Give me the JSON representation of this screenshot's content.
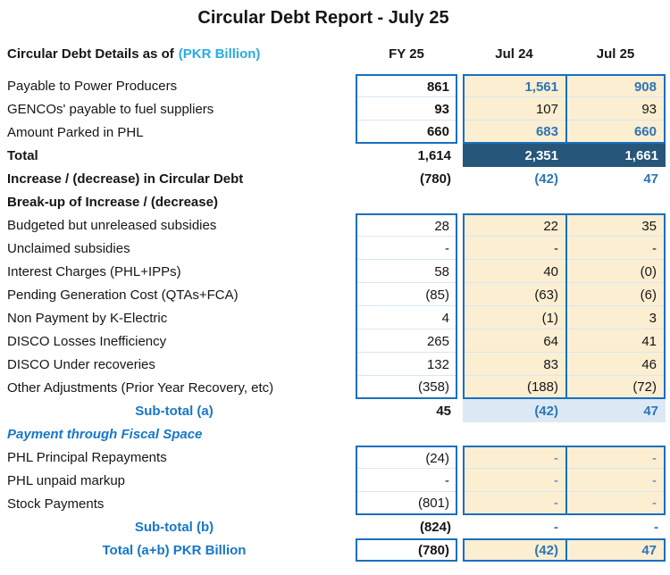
{
  "title": "Circular Debt Report - July 25",
  "header": {
    "label": "Circular Debt Details as of",
    "unit": "(PKR Billion)",
    "columns": [
      "FY 25",
      "Jul 24",
      "Jul 25"
    ]
  },
  "colors": {
    "border_blue": "#1A6FBE",
    "cream_fill": "#FBEED1",
    "navy_band": "#27567B",
    "light_blue_band": "#DCE9F5",
    "blue_number": "#2E75B6",
    "blue_label": "#1777C8",
    "cyan_unit": "#29ABE2"
  },
  "rows": [
    {
      "label": "Payable to Power Producers",
      "fy25": "861",
      "jul24": "1,561",
      "jul25": "908"
    },
    {
      "label": "GENCOs' payable to fuel suppliers",
      "fy25": "93",
      "jul24": "107",
      "jul25": "93"
    },
    {
      "label": "Amount Parked in PHL",
      "fy25": "660",
      "jul24": "683",
      "jul25": "660"
    },
    {
      "label": "Total",
      "fy25": "1,614",
      "jul24": "2,351",
      "jul25": "1,661"
    },
    {
      "label": "Increase / (decrease) in Circular Debt",
      "fy25": "(780)",
      "jul24": "(42)",
      "jul25": "47"
    },
    {
      "label": "Break-up of Increase / (decrease)",
      "fy25": "",
      "jul24": "",
      "jul25": ""
    },
    {
      "label": "Budgeted but unreleased subsidies",
      "fy25": "28",
      "jul24": "22",
      "jul25": "35"
    },
    {
      "label": "Unclaimed subsidies",
      "fy25": "-",
      "jul24": "-",
      "jul25": "-"
    },
    {
      "label": "Interest Charges (PHL+IPPs)",
      "fy25": "58",
      "jul24": "40",
      "jul25": "(0)"
    },
    {
      "label": "Pending Generation Cost (QTAs+FCA)",
      "fy25": "(85)",
      "jul24": "(63)",
      "jul25": "(6)"
    },
    {
      "label": "Non Payment by K-Electric",
      "fy25": "4",
      "jul24": "(1)",
      "jul25": "3"
    },
    {
      "label": "DISCO Losses Inefficiency",
      "fy25": "265",
      "jul24": "64",
      "jul25": "41"
    },
    {
      "label": "DISCO Under recoveries",
      "fy25": "132",
      "jul24": "83",
      "jul25": "46"
    },
    {
      "label": "Other Adjustments (Prior Year Recovery, etc)",
      "fy25": "(358)",
      "jul24": "(188)",
      "jul25": "(72)"
    },
    {
      "label": "Sub-total (a)",
      "fy25": "45",
      "jul24": "(42)",
      "jul25": "47"
    },
    {
      "label": "Payment through Fiscal Space",
      "fy25": "",
      "jul24": "",
      "jul25": ""
    },
    {
      "label": "PHL Principal Repayments",
      "fy25": "(24)",
      "jul24": "-",
      "jul25": "-"
    },
    {
      "label": "PHL unpaid markup",
      "fy25": "-",
      "jul24": "-",
      "jul25": "-"
    },
    {
      "label": "Stock Payments",
      "fy25": "(801)",
      "jul24": "-",
      "jul25": "-"
    },
    {
      "label": "Sub-total (b)",
      "fy25": "(824)",
      "jul24": "-",
      "jul25": "-"
    },
    {
      "label": "Total (a+b) PKR Billion",
      "fy25": "(780)",
      "jul24": "(42)",
      "jul25": "47"
    }
  ]
}
